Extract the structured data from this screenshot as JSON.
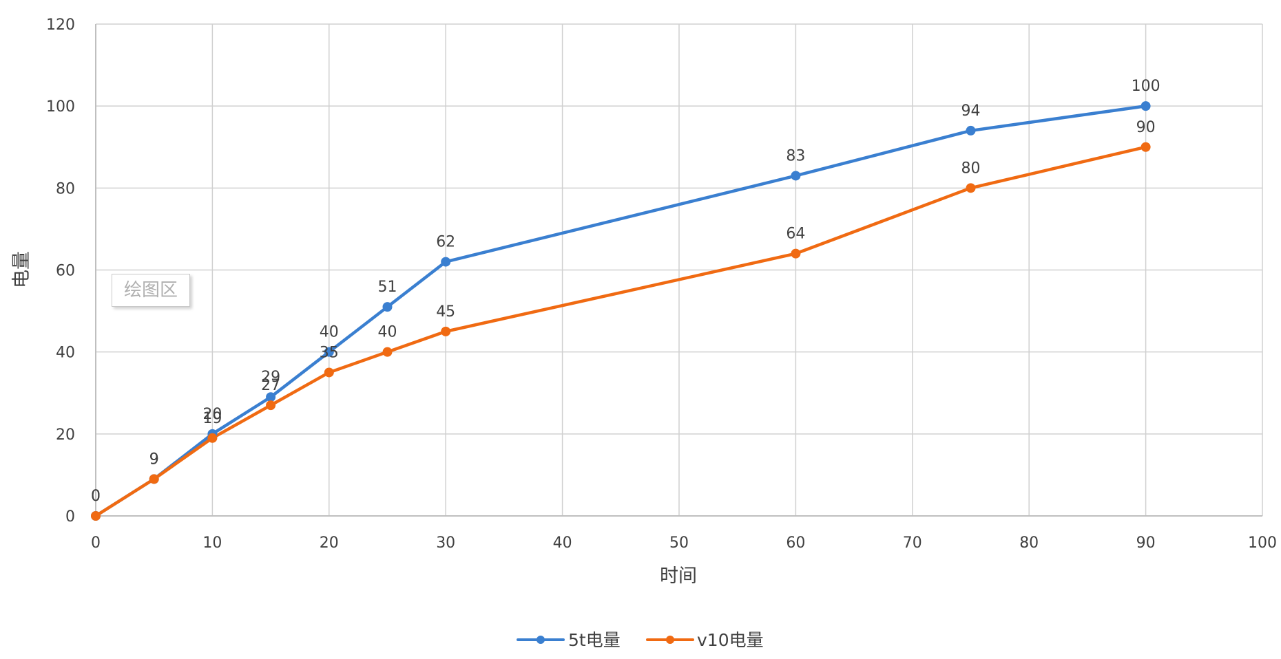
{
  "chart_data": {
    "type": "line",
    "title": "",
    "xlabel": "时间",
    "ylabel": "电量",
    "xlim": [
      0,
      100
    ],
    "ylim": [
      0,
      120
    ],
    "x_ticks": [
      0,
      10,
      20,
      30,
      40,
      50,
      60,
      70,
      80,
      90,
      100
    ],
    "y_ticks": [
      0,
      20,
      40,
      60,
      80,
      100,
      120
    ],
    "grid": true,
    "legend_position": "bottom",
    "x": [
      0,
      5,
      10,
      15,
      20,
      25,
      30,
      60,
      75,
      90
    ],
    "series": [
      {
        "name": "5t电量",
        "color": "#3a7fd0",
        "values": [
          0,
          9,
          20,
          29,
          40,
          51,
          62,
          83,
          94,
          100
        ]
      },
      {
        "name": "v10电量",
        "color": "#f06a12",
        "values": [
          0,
          9,
          19,
          27,
          35,
          40,
          45,
          64,
          80,
          90
        ]
      }
    ],
    "data_labels": true
  },
  "tooltip": {
    "label": "绘图区"
  },
  "legend": {
    "items": [
      {
        "label": "5t电量"
      },
      {
        "label": "v10电量"
      }
    ]
  },
  "axes": {
    "x_title": "时间",
    "y_title": "电量"
  }
}
